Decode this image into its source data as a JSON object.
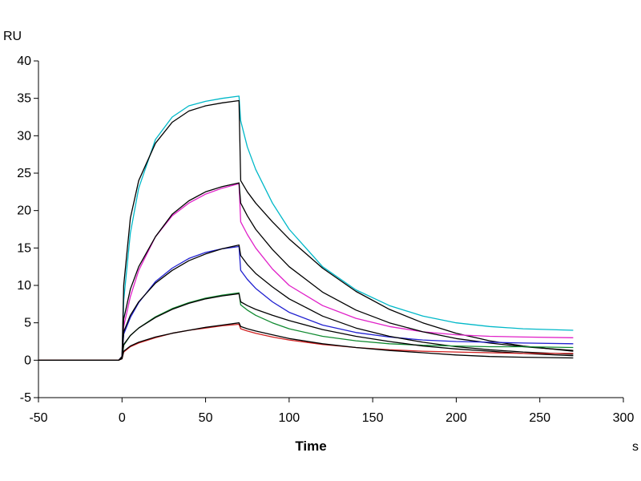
{
  "chart_data": {
    "type": "line",
    "title": "",
    "xlabel": "Time",
    "x_unit": "s",
    "ylabel": "RU",
    "xlim": [
      -50,
      300
    ],
    "ylim": [
      -5,
      40
    ],
    "x_ticks": [
      -50,
      0,
      50,
      100,
      150,
      200,
      250,
      300
    ],
    "y_ticks": [
      -5,
      0,
      5,
      10,
      15,
      20,
      25,
      30,
      35,
      40
    ],
    "grid": false,
    "legend": "none",
    "x": [
      -50,
      -2,
      0,
      1,
      5,
      10,
      20,
      30,
      40,
      50,
      60,
      70,
      71,
      75,
      80,
      90,
      100,
      120,
      140,
      160,
      180,
      200,
      220,
      240,
      270
    ],
    "series": [
      {
        "color": "#00b8c8",
        "values": [
          0,
          0,
          0.5,
          8,
          17,
          23,
          29.5,
          32.5,
          34,
          34.6,
          35,
          35.3,
          32,
          28.5,
          25.5,
          21,
          17.5,
          12.5,
          9.4,
          7.3,
          5.9,
          5,
          4.5,
          4.2,
          4
        ]
      },
      {
        "color": "#000000",
        "values": [
          0,
          0,
          0.5,
          10,
          19,
          24,
          29,
          31.8,
          33.3,
          34,
          34.4,
          34.7,
          24,
          22.5,
          21,
          18.5,
          16.2,
          12.3,
          9.2,
          6.8,
          5,
          3.6,
          2.6,
          1.9,
          1.2
        ]
      },
      {
        "color": "#e020c8",
        "values": [
          0,
          0,
          0.5,
          4.5,
          8.5,
          12,
          16.5,
          19.3,
          21,
          22.2,
          23,
          23.6,
          18.5,
          16.8,
          15,
          12.2,
          10,
          7.3,
          5.6,
          4.5,
          3.8,
          3.4,
          3.2,
          3.1,
          3
        ]
      },
      {
        "color": "#000000",
        "values": [
          0,
          0,
          0.5,
          5.5,
          9.5,
          12.5,
          16.5,
          19.5,
          21.3,
          22.5,
          23.2,
          23.7,
          21,
          19.3,
          17.5,
          14.8,
          12.5,
          9.1,
          6.7,
          5,
          3.8,
          2.9,
          2.3,
          1.8,
          1.3
        ]
      },
      {
        "color": "#2020d0",
        "values": [
          0,
          0,
          0.4,
          3.5,
          5.7,
          7.7,
          10.5,
          12.3,
          13.6,
          14.4,
          14.9,
          15.2,
          12,
          10.8,
          9.6,
          7.8,
          6.4,
          4.7,
          3.7,
          3.1,
          2.7,
          2.5,
          2.4,
          2.3,
          2.2
        ]
      },
      {
        "color": "#000000",
        "values": [
          0,
          0,
          0.4,
          3.8,
          6,
          7.8,
          10.3,
          12,
          13.3,
          14.2,
          14.9,
          15.4,
          14,
          12.8,
          11.6,
          9.8,
          8.2,
          5.9,
          4.3,
          3.2,
          2.4,
          1.8,
          1.4,
          1.1,
          0.8
        ]
      },
      {
        "color": "#108a30",
        "values": [
          0,
          0,
          0.3,
          2,
          3.3,
          4.3,
          5.8,
          6.9,
          7.7,
          8.3,
          8.7,
          9,
          7.4,
          6.7,
          6,
          5,
          4.2,
          3.2,
          2.6,
          2.2,
          2,
          1.9,
          1.8,
          1.8,
          1.7
        ]
      },
      {
        "color": "#000000",
        "values": [
          0,
          0,
          0.3,
          2.1,
          3.3,
          4.3,
          5.7,
          6.8,
          7.6,
          8.2,
          8.6,
          8.9,
          7.8,
          7.3,
          6.8,
          6,
          5.3,
          4.1,
          3.2,
          2.5,
          1.9,
          1.5,
          1.2,
          0.9,
          0.6
        ]
      },
      {
        "color": "#d02020",
        "values": [
          0,
          0,
          0.2,
          1.1,
          1.8,
          2.3,
          3,
          3.6,
          4,
          4.3,
          4.6,
          4.8,
          4.2,
          3.9,
          3.6,
          3.1,
          2.7,
          2.1,
          1.7,
          1.4,
          1.2,
          1.1,
          1,
          0.9,
          0.9
        ]
      },
      {
        "color": "#000000",
        "values": [
          0,
          0,
          0.2,
          1.2,
          1.9,
          2.4,
          3.1,
          3.6,
          4,
          4.4,
          4.7,
          5,
          4.5,
          4.2,
          3.9,
          3.4,
          2.9,
          2.2,
          1.7,
          1.3,
          1,
          0.7,
          0.5,
          0.4,
          0.3
        ]
      }
    ]
  }
}
